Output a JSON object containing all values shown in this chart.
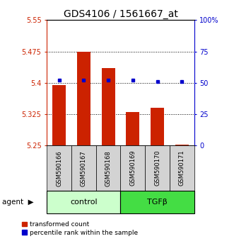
{
  "title": "GDS4106 / 1561667_at",
  "categories": [
    "GSM590166",
    "GSM590167",
    "GSM590168",
    "GSM590169",
    "GSM590170",
    "GSM590171"
  ],
  "bar_values": [
    5.395,
    5.475,
    5.435,
    5.33,
    5.34,
    5.252
  ],
  "bar_base": 5.25,
  "percentile_values": [
    52,
    52,
    52,
    52,
    51,
    51
  ],
  "ylim_left": [
    5.25,
    5.55
  ],
  "ylim_right": [
    0,
    100
  ],
  "yticks_left": [
    5.25,
    5.325,
    5.4,
    5.475,
    5.55
  ],
  "ytick_labels_left": [
    "5.25",
    "5.325",
    "5.4",
    "5.475",
    "5.55"
  ],
  "yticks_right": [
    0,
    25,
    50,
    75,
    100
  ],
  "ytick_labels_right": [
    "0",
    "25",
    "50",
    "75",
    "100%"
  ],
  "hlines": [
    5.325,
    5.4,
    5.475
  ],
  "bar_color": "#cc2200",
  "dot_color": "#0000cc",
  "control_label": "control",
  "tgfb_label": "TGFβ",
  "agent_label": "agent",
  "legend_bar_label": "transformed count",
  "legend_dot_label": "percentile rank within the sample",
  "control_color": "#ccffcc",
  "tgfb_color": "#44dd44",
  "left_axis_color": "#cc2200",
  "right_axis_color": "#0000cc",
  "title_fontsize": 10,
  "tick_fontsize": 7,
  "label_fontsize": 6,
  "legend_fontsize": 6.5,
  "group_fontsize": 8
}
